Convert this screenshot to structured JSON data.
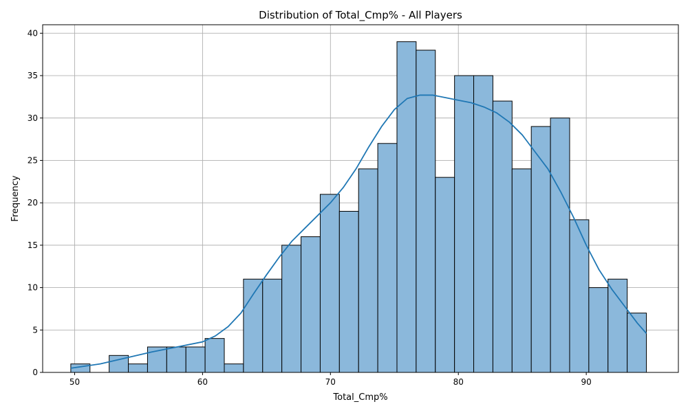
{
  "chart_data": {
    "type": "bar",
    "title": "Distribution of Total_Cmp% - All Players",
    "xlabel": "Total_Cmp%",
    "ylabel": "Frequency",
    "xlim": [
      47.5,
      97.2
    ],
    "ylim": [
      0,
      41
    ],
    "xticks": [
      50,
      60,
      70,
      80,
      90
    ],
    "yticks": [
      0,
      5,
      10,
      15,
      20,
      25,
      30,
      35,
      40
    ],
    "grid": true,
    "bin_start": 49.7,
    "bin_width": 1.5,
    "values": [
      1,
      0,
      2,
      1,
      3,
      3,
      3,
      4,
      1,
      11,
      11,
      15,
      16,
      21,
      19,
      24,
      27,
      39,
      38,
      23,
      35,
      35,
      32,
      24,
      29,
      30,
      18,
      10,
      11,
      7
    ],
    "bar_color": "#8bb8db",
    "edge_color": "#000000",
    "kde": {
      "color": "#1f77b4",
      "x": [
        49.7,
        52,
        54,
        56,
        58,
        60,
        61,
        62,
        63,
        64,
        65,
        66,
        67,
        68,
        69,
        70,
        71,
        72,
        73,
        74,
        75,
        76,
        77,
        78,
        79,
        80,
        81,
        82,
        83,
        84,
        85,
        86,
        87,
        88,
        89,
        90,
        91,
        92,
        93,
        94,
        94.7
      ],
      "y": [
        0.5,
        1.0,
        1.7,
        2.4,
        3.0,
        3.6,
        4.3,
        5.4,
        7.0,
        9.3,
        11.5,
        13.6,
        15.5,
        17.0,
        18.5,
        20.0,
        21.8,
        24.0,
        26.6,
        29.0,
        31.0,
        32.3,
        32.7,
        32.7,
        32.4,
        32.1,
        31.8,
        31.3,
        30.6,
        29.5,
        28.0,
        26.0,
        24.0,
        21.3,
        18.3,
        15.0,
        12.1,
        9.8,
        7.8,
        5.8,
        4.6
      ]
    }
  }
}
